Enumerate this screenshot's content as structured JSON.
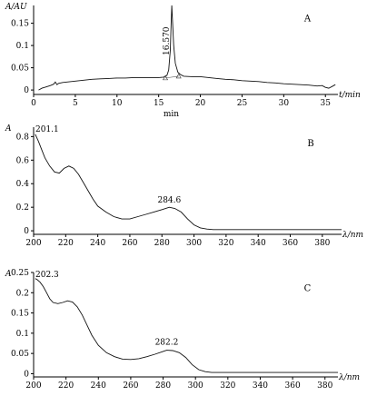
{
  "chart_data": [
    {
      "type": "line",
      "panel_label": "A",
      "ylabel": "A/AU",
      "xlabel": "t/min",
      "xlabel_secondary": "min",
      "xlim": [
        0,
        36.5
      ],
      "ylim": [
        -0.01,
        0.19
      ],
      "xticks": [
        0,
        5,
        10,
        15,
        20,
        25,
        30,
        35
      ],
      "yticks": [
        0,
        0.05,
        0.1,
        0.15
      ],
      "ytick_labels": [
        "0",
        "0.05",
        "0.1",
        "0.15"
      ],
      "peak_annotation": {
        "label": "16.570",
        "x": 16.57
      },
      "grid": false,
      "x": [
        0.6,
        1.0,
        1.5,
        2.0,
        2.4,
        2.6,
        2.8,
        3.0,
        3.5,
        4.0,
        5.0,
        6.0,
        7.0,
        8.0,
        9.0,
        10.0,
        11.0,
        12.0,
        13.0,
        14.0,
        15.0,
        15.6,
        16.0,
        16.2,
        16.4,
        16.5,
        16.57,
        16.65,
        16.8,
        17.0,
        17.3,
        17.6,
        18.0,
        19.0,
        20.0,
        21.0,
        22.0,
        23.0,
        24.0,
        25.0,
        26.0,
        27.0,
        28.0,
        29.0,
        30.0,
        31.0,
        32.0,
        33.0,
        34.0,
        34.6,
        35.0,
        35.4,
        35.8,
        36.2
      ],
      "y": [
        0.0,
        0.004,
        0.007,
        0.01,
        0.013,
        0.018,
        0.012,
        0.015,
        0.017,
        0.018,
        0.02,
        0.022,
        0.024,
        0.025,
        0.026,
        0.027,
        0.027,
        0.028,
        0.028,
        0.028,
        0.028,
        0.029,
        0.033,
        0.045,
        0.09,
        0.15,
        0.19,
        0.16,
        0.1,
        0.06,
        0.04,
        0.035,
        0.031,
        0.03,
        0.03,
        0.028,
        0.026,
        0.024,
        0.023,
        0.021,
        0.02,
        0.019,
        0.017,
        0.016,
        0.014,
        0.013,
        0.012,
        0.011,
        0.009,
        0.01,
        0.006,
        0.004,
        0.008,
        0.012
      ],
      "baseline_markers": [
        15.8,
        17.4
      ]
    },
    {
      "type": "line",
      "panel_label": "B",
      "ylabel": "A",
      "xlabel": "λ/nm",
      "xlim": [
        200,
        392
      ],
      "ylim": [
        -0.03,
        0.88
      ],
      "xticks": [
        200,
        220,
        240,
        260,
        280,
        300,
        320,
        340,
        360,
        380
      ],
      "yticks": [
        0,
        0.2,
        0.4,
        0.6,
        0.8
      ],
      "ytick_labels": [
        "0",
        "0.2",
        "0.4",
        "0.6",
        "0.8"
      ],
      "grid": false,
      "annotations": [
        {
          "label": "201.1",
          "x": 201.1,
          "y": 0.82
        },
        {
          "label": "284.6",
          "x": 284.6,
          "y": 0.2
        }
      ],
      "x": [
        201,
        203,
        205,
        207,
        210,
        213,
        216,
        219,
        222,
        225,
        228,
        231,
        234,
        237,
        240,
        245,
        250,
        255,
        260,
        265,
        270,
        275,
        280,
        284.6,
        288,
        292,
        296,
        300,
        304,
        308,
        312,
        320,
        340,
        360,
        380,
        392
      ],
      "y": [
        0.82,
        0.76,
        0.69,
        0.62,
        0.55,
        0.5,
        0.49,
        0.53,
        0.55,
        0.53,
        0.48,
        0.41,
        0.34,
        0.27,
        0.21,
        0.16,
        0.12,
        0.1,
        0.1,
        0.12,
        0.14,
        0.16,
        0.18,
        0.2,
        0.19,
        0.16,
        0.1,
        0.05,
        0.025,
        0.015,
        0.01,
        0.01,
        0.01,
        0.01,
        0.01,
        0.01
      ]
    },
    {
      "type": "line",
      "panel_label": "C",
      "ylabel": "A",
      "xlabel": "λ/nm",
      "xlim": [
        200,
        388
      ],
      "ylim": [
        -0.008,
        0.25
      ],
      "xticks": [
        200,
        220,
        240,
        260,
        280,
        300,
        320,
        340,
        360,
        380
      ],
      "yticks": [
        0,
        0.05,
        0.1,
        0.15,
        0.2,
        0.25
      ],
      "ytick_labels": [
        "0",
        "0.05",
        "0.1",
        "0.15",
        "0.2",
        "0.25"
      ],
      "grid": false,
      "annotations": [
        {
          "label": "202.3",
          "x": 202.3,
          "y": 0.232
        },
        {
          "label": "282.2",
          "x": 282.2,
          "y": 0.06
        }
      ],
      "x": [
        201,
        202.3,
        204,
        206,
        208,
        210,
        212,
        215,
        218,
        221,
        224,
        227,
        230,
        233,
        236,
        240,
        245,
        250,
        255,
        260,
        265,
        270,
        275,
        280,
        282.2,
        286,
        290,
        294,
        298,
        302,
        306,
        310,
        320,
        340,
        360,
        380,
        388
      ],
      "y": [
        0.235,
        0.232,
        0.226,
        0.215,
        0.2,
        0.185,
        0.176,
        0.173,
        0.176,
        0.18,
        0.177,
        0.165,
        0.145,
        0.12,
        0.095,
        0.07,
        0.052,
        0.042,
        0.036,
        0.035,
        0.037,
        0.042,
        0.048,
        0.055,
        0.058,
        0.057,
        0.052,
        0.04,
        0.022,
        0.01,
        0.005,
        0.003,
        0.003,
        0.003,
        0.003,
        0.003,
        0.003
      ]
    }
  ]
}
